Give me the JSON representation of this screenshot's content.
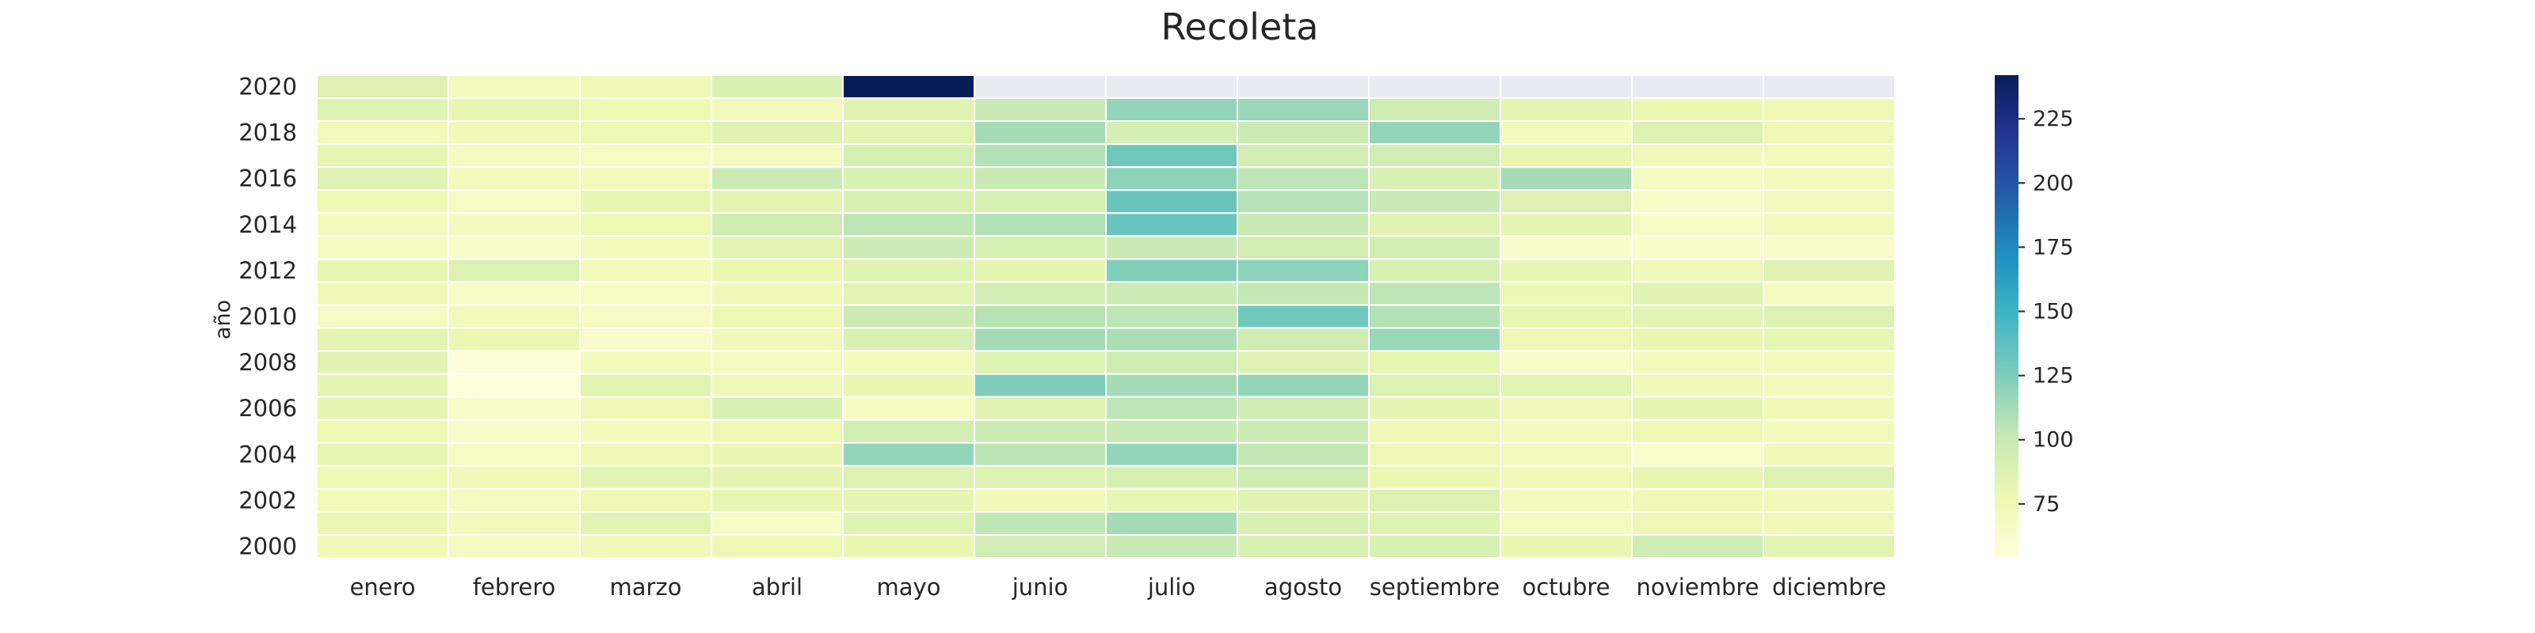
{
  "chart_data": {
    "type": "heatmap",
    "title": "Recoleta",
    "ylabel": "año",
    "xlabel": "",
    "colormap": "YlGnBu",
    "x_categories": [
      "enero",
      "febrero",
      "marzo",
      "abril",
      "mayo",
      "junio",
      "julio",
      "agosto",
      "septiembre",
      "octubre",
      "noviembre",
      "diciembre"
    ],
    "y_categories": [
      "2020",
      "2019",
      "2018",
      "2017",
      "2016",
      "2015",
      "2014",
      "2013",
      "2012",
      "2011",
      "2010",
      "2009",
      "2008",
      "2007",
      "2006",
      "2005",
      "2004",
      "2003",
      "2002",
      "2001",
      "2000"
    ],
    "y_tick_labels": [
      "2020",
      "2018",
      "2016",
      "2014",
      "2012",
      "2010",
      "2008",
      "2006",
      "2004",
      "2002",
      "2000"
    ],
    "missing_color": "#eaeaf2",
    "values": [
      [
        88,
        72,
        75,
        90,
        242,
        null,
        null,
        null,
        null,
        null,
        null,
        null
      ],
      [
        86,
        80,
        77,
        72,
        85,
        100,
        118,
        116,
        96,
        82,
        78,
        75
      ],
      [
        72,
        74,
        77,
        86,
        84,
        112,
        93,
        98,
        118,
        70,
        88,
        75
      ],
      [
        80,
        68,
        67,
        68,
        92,
        108,
        130,
        95,
        95,
        80,
        73,
        72
      ],
      [
        87,
        72,
        72,
        98,
        90,
        100,
        120,
        104,
        90,
        112,
        68,
        70
      ],
      [
        77,
        67,
        80,
        82,
        90,
        92,
        133,
        107,
        100,
        88,
        65,
        70
      ],
      [
        70,
        70,
        77,
        96,
        104,
        108,
        133,
        100,
        85,
        82,
        67,
        72
      ],
      [
        68,
        64,
        72,
        84,
        97,
        92,
        100,
        94,
        94,
        63,
        64,
        64
      ],
      [
        81,
        88,
        71,
        78,
        86,
        82,
        124,
        120,
        90,
        80,
        73,
        85
      ],
      [
        75,
        65,
        67,
        74,
        84,
        94,
        98,
        102,
        104,
        78,
        86,
        68
      ],
      [
        67,
        72,
        67,
        77,
        98,
        106,
        104,
        130,
        108,
        80,
        84,
        88
      ],
      [
        83,
        78,
        63,
        74,
        90,
        112,
        110,
        96,
        116,
        76,
        79,
        81
      ],
      [
        86,
        56,
        72,
        68,
        71,
        87,
        96,
        88,
        81,
        64,
        72,
        72
      ],
      [
        82,
        54,
        84,
        73,
        79,
        125,
        112,
        118,
        88,
        84,
        74,
        70
      ],
      [
        82,
        64,
        76,
        90,
        68,
        87,
        104,
        96,
        82,
        73,
        82,
        75
      ],
      [
        77,
        64,
        72,
        76,
        95,
        98,
        100,
        98,
        76,
        70,
        77,
        72
      ],
      [
        80,
        67,
        76,
        79,
        118,
        105,
        118,
        102,
        76,
        71,
        62,
        74
      ],
      [
        77,
        74,
        84,
        82,
        88,
        86,
        92,
        96,
        78,
        74,
        80,
        88
      ],
      [
        72,
        68,
        76,
        80,
        82,
        74,
        80,
        86,
        88,
        70,
        75,
        74
      ],
      [
        78,
        72,
        84,
        65,
        86,
        103,
        112,
        90,
        86,
        69,
        76,
        74
      ],
      [
        74,
        68,
        73,
        76,
        79,
        94,
        100,
        90,
        90,
        79,
        96,
        84
      ]
    ],
    "colorbar": {
      "min": 54,
      "max": 242,
      "ticks": [
        75,
        100,
        125,
        150,
        175,
        200,
        225
      ]
    }
  },
  "colors": {
    "ylgnbu": [
      "#ffffd9",
      "#edf8b1",
      "#c7e9b4",
      "#7fcdbb",
      "#41b6c4",
      "#1d91c0",
      "#225ea8",
      "#253494",
      "#081d58"
    ],
    "text": "#262626",
    "gridline": "#ffffff"
  }
}
